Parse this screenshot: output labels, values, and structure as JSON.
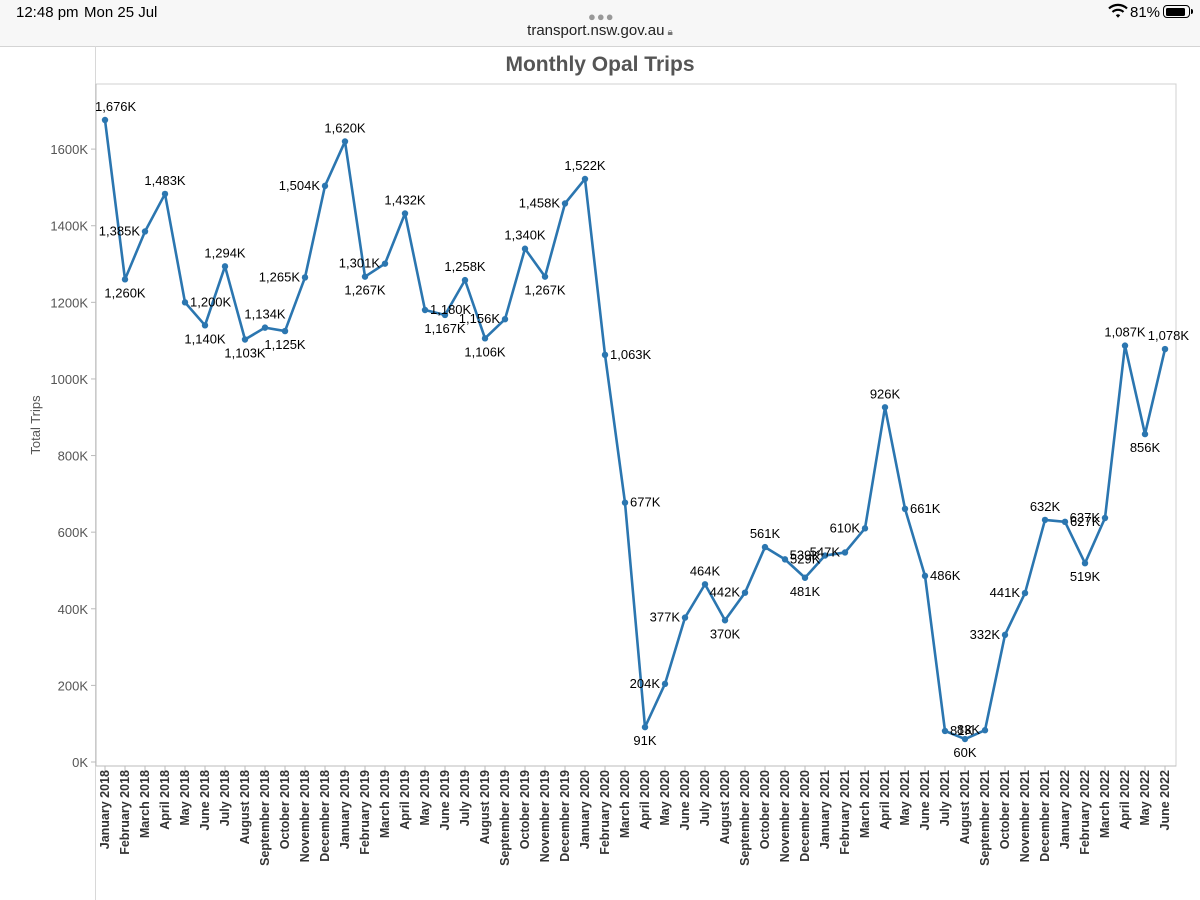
{
  "status_bar": {
    "time": "12:48 pm",
    "date": "Mon 25 Jul",
    "battery": "81%",
    "wifi_icon": "wifi-icon",
    "battery_icon": "battery-icon"
  },
  "browser": {
    "url": "transport.nsw.gov.au",
    "lock_icon": "lock-icon",
    "tab_dots_icon": "more-dots-icon"
  },
  "colors": {
    "line": "#2b76b0",
    "grid": "#d6d6d6"
  },
  "chart_data": {
    "type": "line",
    "title": "Monthly Opal Trips",
    "xlabel": "",
    "ylabel": "Total Trips",
    "ylim": [
      0,
      1800000
    ],
    "y_ticks": [
      0,
      200000,
      400000,
      600000,
      800000,
      1000000,
      1200000,
      1400000,
      1600000
    ],
    "y_tick_labels": [
      "0K",
      "200K",
      "400K",
      "600K",
      "800K",
      "1000K",
      "1200K",
      "1400K",
      "1600K"
    ],
    "grid": false,
    "categories": [
      "January 2018",
      "February 2018",
      "March 2018",
      "April 2018",
      "May 2018",
      "June 2018",
      "July 2018",
      "August 2018",
      "September 2018",
      "October 2018",
      "November 2018",
      "December 2018",
      "January 2019",
      "February 2019",
      "March 2019",
      "April 2019",
      "May 2019",
      "June 2019",
      "July 2019",
      "August 2019",
      "September 2019",
      "October 2019",
      "November 2019",
      "December 2019",
      "January 2020",
      "February 2020",
      "March 2020",
      "April 2020",
      "May 2020",
      "June 2020",
      "July 2020",
      "August 2020",
      "September 2020",
      "October 2020",
      "November 2020",
      "December 2020",
      "January 2021",
      "February 2021",
      "March 2021",
      "April 2021",
      "May 2021",
      "June 2021",
      "July 2021",
      "August 2021",
      "September 2021",
      "October 2021",
      "November 2021",
      "December 2021",
      "January 2022",
      "February 2022",
      "March 2022",
      "April 2022",
      "May 2022",
      "June 2022"
    ],
    "values": [
      1676000,
      1260000,
      1385000,
      1483000,
      1200000,
      1140000,
      1294000,
      1103000,
      1134000,
      1125000,
      1265000,
      1504000,
      1620000,
      1267000,
      1301000,
      1432000,
      1180000,
      1167000,
      1258000,
      1106000,
      1156000,
      1340000,
      1267000,
      1458000,
      1522000,
      1063000,
      677000,
      91000,
      204000,
      377000,
      464000,
      370000,
      442000,
      561000,
      529000,
      481000,
      539000,
      547000,
      610000,
      926000,
      661000,
      486000,
      81000,
      60000,
      83000,
      332000,
      441000,
      632000,
      627000,
      519000,
      637000,
      1087000,
      856000,
      1078000
    ],
    "data_labels": [
      "1,676K",
      "1,260K",
      "1,385K",
      "1,483K",
      "1,200K",
      "1,140K",
      "1,294K",
      "1,103K",
      "1,134K",
      "1,125K",
      "1,265K",
      "1,504K",
      "1,620K",
      "1,267K",
      "1,301K",
      "1,432K",
      "1,180K",
      "1,167K",
      "1,258K",
      "1,106K",
      "1,156K",
      "1,340K",
      "1,267K",
      "1,458K",
      "1,522K",
      "1,063K",
      "677K",
      "91K",
      "204K",
      "377K",
      "464K",
      "370K",
      "442K",
      "561K",
      "529K",
      "481K",
      "539K",
      "547K",
      "610K",
      "926K",
      "661K",
      "486K",
      "81K",
      "60K",
      "83K",
      "332K",
      "441K",
      "632K",
      "627K",
      "519K",
      "637K",
      "1,087K",
      "856K",
      "1,078K"
    ]
  }
}
